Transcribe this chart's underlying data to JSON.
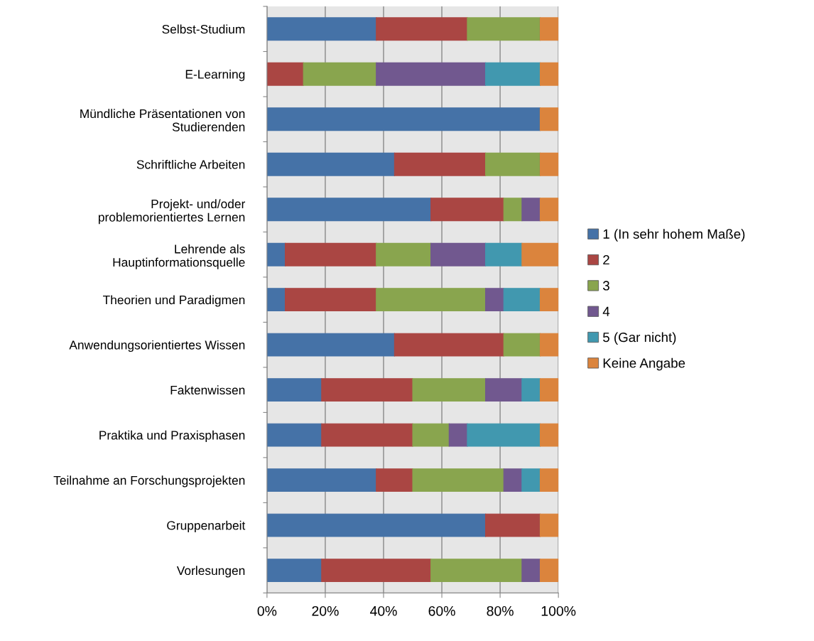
{
  "chart_data": {
    "type": "bar",
    "orientation": "horizontal",
    "stacked": true,
    "categories": [
      "Selbst-Studium",
      "E-Learning",
      "Mündliche Präsentationen von\nStudierenden",
      "Schriftliche Arbeiten",
      "Projekt- und/oder\nproblemorientiertes Lernen",
      "Lehrende als\nHauptinformationsquelle",
      "Theorien und Paradigmen",
      "Anwendungsorientiertes Wissen",
      "Faktenwissen",
      "Praktika und Praxisphasen",
      "Teilnahme an Forschungsprojekten",
      "Gruppenarbeit",
      "Vorlesungen"
    ],
    "series": [
      {
        "name": "1 (In sehr hohem Maße)",
        "color": "#4572a7",
        "values": [
          37.5,
          0,
          93.75,
          43.75,
          56.25,
          6.25,
          6.25,
          43.75,
          18.75,
          18.75,
          37.5,
          75,
          18.75
        ]
      },
      {
        "name": "2",
        "color": "#aa4643",
        "values": [
          31.25,
          12.5,
          0,
          31.25,
          25,
          31.25,
          31.25,
          37.5,
          31.25,
          31.25,
          12.5,
          18.75,
          37.5
        ]
      },
      {
        "name": "3",
        "color": "#89a54e",
        "values": [
          25,
          25,
          0,
          18.75,
          6.25,
          18.75,
          37.5,
          12.5,
          25,
          12.5,
          31.25,
          0,
          31.25
        ]
      },
      {
        "name": "4",
        "color": "#71588f",
        "values": [
          0,
          37.5,
          0,
          0,
          6.25,
          18.75,
          6.25,
          0,
          12.5,
          6.25,
          6.25,
          0,
          6.25
        ]
      },
      {
        "name": "5 (Gar nicht)",
        "color": "#4198af",
        "values": [
          0,
          18.75,
          0,
          0,
          0,
          12.5,
          12.5,
          0,
          6.25,
          25,
          6.25,
          0,
          0
        ]
      },
      {
        "name": "Keine Angabe",
        "color": "#db843d",
        "values": [
          6.25,
          6.25,
          6.25,
          6.25,
          6.25,
          12.5,
          6.25,
          6.25,
          6.25,
          6.25,
          6.25,
          6.25,
          6.25
        ]
      }
    ],
    "xlim": [
      0,
      100
    ],
    "xticks": [
      {
        "value": 0,
        "label": "0%"
      },
      {
        "value": 20,
        "label": "20%"
      },
      {
        "value": 40,
        "label": "40%"
      },
      {
        "value": 60,
        "label": "60%"
      },
      {
        "value": 80,
        "label": "80%"
      },
      {
        "value": 100,
        "label": "100%"
      }
    ],
    "grid": "x",
    "legend": "right"
  }
}
